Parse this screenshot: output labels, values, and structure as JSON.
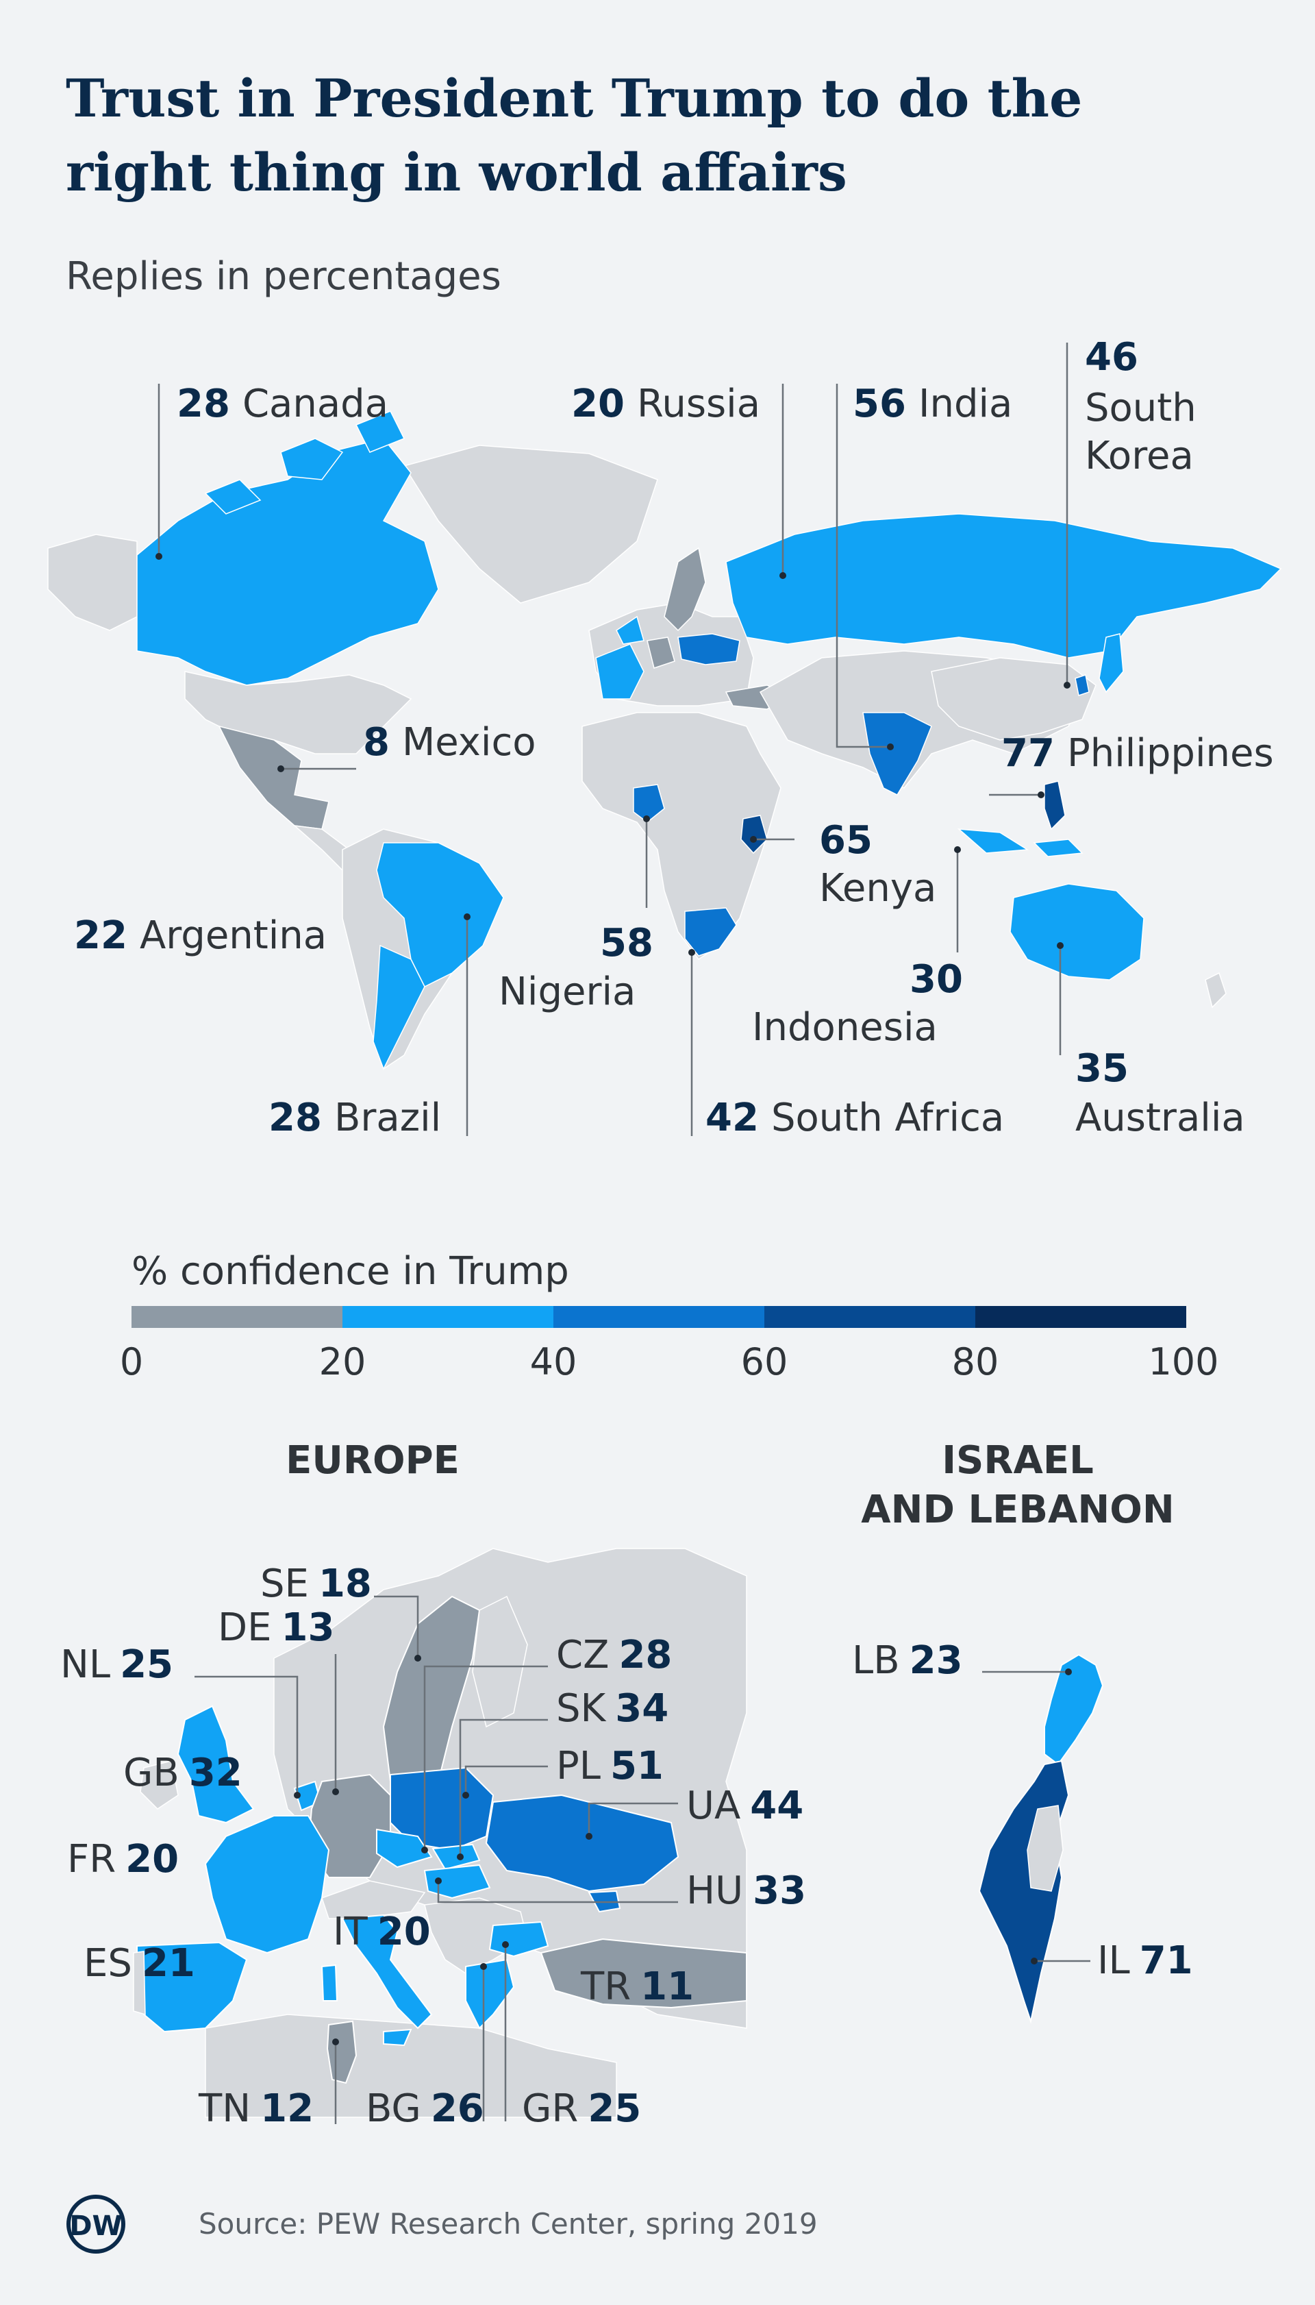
{
  "title_line1": "Trust in President Trump to do the",
  "title_line2": "right thing in world affairs",
  "subtitle": "Replies in percentages",
  "colors": {
    "no_data": "#d5d8dc",
    "bin_0_20": "#8e9aa5",
    "bin_20_40": "#11a3f5",
    "bin_40_60": "#0b74cf",
    "bin_60_80": "#064a92",
    "bin_80_100": "#062b5a"
  },
  "world": {
    "countries": [
      {
        "name": "Canada",
        "value": "28"
      },
      {
        "name": "Russia",
        "value": "20"
      },
      {
        "name": "India",
        "value": "56"
      },
      {
        "name": "South",
        "name2": "Korea",
        "value": "46"
      },
      {
        "name": "Mexico",
        "value": "8"
      },
      {
        "name": "Philippines",
        "value": "77"
      },
      {
        "name": "Kenya",
        "value": "65"
      },
      {
        "name": "Argentina",
        "value": "22"
      },
      {
        "name": "Nigeria",
        "value": "58"
      },
      {
        "name": "Indonesia",
        "value": "30"
      },
      {
        "name": "Australia",
        "value": "35"
      },
      {
        "name": "Brazil",
        "value": "28"
      },
      {
        "name": "South Africa",
        "value": "42"
      }
    ]
  },
  "legend": {
    "title": "% confidence in Trump",
    "ticks": [
      "0",
      "20",
      "40",
      "60",
      "80",
      "100"
    ]
  },
  "europe": {
    "title": "EUROPE",
    "countries": [
      {
        "code": "SE",
        "value": "18"
      },
      {
        "code": "DE",
        "value": "13"
      },
      {
        "code": "NL",
        "value": "25"
      },
      {
        "code": "CZ",
        "value": "28"
      },
      {
        "code": "SK",
        "value": "34"
      },
      {
        "code": "GB",
        "value": "32"
      },
      {
        "code": "PL",
        "value": "51"
      },
      {
        "code": "UA",
        "value": "44"
      },
      {
        "code": "FR",
        "value": "20"
      },
      {
        "code": "HU",
        "value": "33"
      },
      {
        "code": "IT",
        "value": "20"
      },
      {
        "code": "ES",
        "value": "21"
      },
      {
        "code": "TR",
        "value": "11"
      },
      {
        "code": "TN",
        "value": "12"
      },
      {
        "code": "BG",
        "value": "26"
      },
      {
        "code": "GR",
        "value": "25"
      }
    ]
  },
  "levant": {
    "title_line1": "ISRAEL",
    "title_line2": "AND LEBANON",
    "countries": [
      {
        "code": "LB",
        "value": "23"
      },
      {
        "code": "IL",
        "value": "71"
      }
    ]
  },
  "footer": {
    "logo_text": "DW",
    "source": "Source: PEW Research Center, spring 2019"
  }
}
